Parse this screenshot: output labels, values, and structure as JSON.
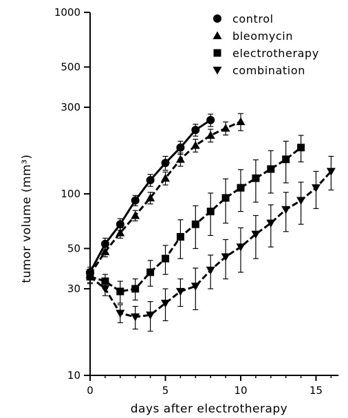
{
  "chart_data": {
    "type": "line",
    "xlabel": "days after electrotherapy",
    "ylabel": "tumor volume (mm³)",
    "xlim": [
      0,
      16.5
    ],
    "ylim": [
      10,
      1000
    ],
    "yscale": "log",
    "x_ticks": [
      0,
      5,
      10,
      15
    ],
    "y_ticks": [
      10,
      30,
      50,
      100,
      300,
      500,
      1000
    ],
    "grid": false,
    "legend_position": "top-right",
    "series": [
      {
        "name": "control",
        "marker": "circle",
        "line": "solid",
        "x": [
          0,
          1,
          2,
          3,
          4,
          5,
          6,
          7,
          8
        ],
        "y": [
          37,
          53,
          68,
          92,
          119,
          148,
          180,
          225,
          255
        ],
        "err": [
          2.5,
          4,
          5,
          6,
          9,
          13,
          15,
          17,
          20
        ]
      },
      {
        "name": "bleomycin",
        "marker": "triangle-up",
        "line": "dashed",
        "x": [
          0,
          1,
          2,
          3,
          4,
          5,
          6,
          7,
          8,
          9,
          10
        ],
        "y": [
          36,
          48,
          61,
          76,
          95,
          122,
          155,
          185,
          210,
          230,
          250
        ],
        "err": [
          2.5,
          3,
          4,
          5,
          7,
          10,
          13,
          15,
          17,
          19,
          27
        ]
      },
      {
        "name": "electrotherapy",
        "marker": "square",
        "line": "dashed",
        "x": [
          0,
          1,
          2,
          3,
          4,
          5,
          6,
          7,
          8,
          9,
          10,
          11,
          12,
          13,
          14
        ],
        "y": [
          35,
          33,
          29,
          30,
          37,
          44,
          58,
          68,
          80,
          95,
          108,
          122,
          137,
          155,
          180
        ],
        "err": [
          2.5,
          3,
          4,
          4,
          6,
          8,
          14,
          18,
          21,
          26,
          28,
          32,
          36,
          40,
          30
        ]
      },
      {
        "name": "combination",
        "marker": "triangle-down",
        "line": "dashed",
        "x": [
          0,
          1,
          2,
          3,
          4,
          5,
          6,
          7,
          8,
          9,
          10,
          11,
          12,
          13,
          14,
          15,
          16
        ],
        "y": [
          35,
          30,
          22,
          21,
          21.5,
          25,
          29,
          31,
          38,
          45,
          51,
          60,
          69,
          82,
          92,
          108,
          133
        ],
        "err": [
          3,
          2.5,
          2.5,
          3,
          4,
          5,
          5,
          8,
          8,
          11,
          14,
          16,
          18,
          20,
          24,
          25,
          28
        ]
      }
    ]
  }
}
